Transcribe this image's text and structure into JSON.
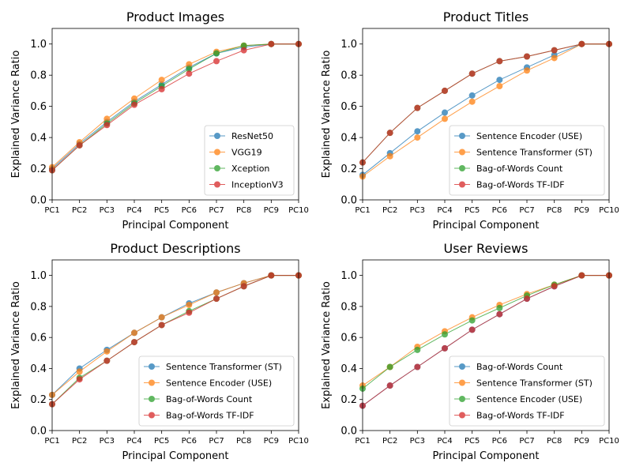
{
  "palette": {
    "blue": "#1f77b4",
    "orange": "#ff7f0e",
    "green": "#2ca02c",
    "red": "#d62728"
  },
  "chart_data": [
    {
      "type": "line",
      "title": "Product Images",
      "xlabel": "Principal Component",
      "ylabel": "Explained Variance Ratio",
      "ylim": [
        0,
        1.1
      ],
      "yticks": [
        "0.0",
        "0.2",
        "0.4",
        "0.6",
        "0.8",
        "1.0"
      ],
      "categories": [
        "PC1",
        "PC2",
        "PC3",
        "PC4",
        "PC5",
        "PC6",
        "PC7",
        "PC8",
        "PC9",
        "PC10"
      ],
      "legend_position": "lower-right",
      "series": [
        {
          "name": "ResNet50",
          "color": "#1f77b4",
          "values": [
            0.2,
            0.36,
            0.5,
            0.63,
            0.74,
            0.85,
            0.94,
            0.98,
            1.0,
            1.0
          ]
        },
        {
          "name": "VGG19",
          "color": "#ff7f0e",
          "values": [
            0.21,
            0.37,
            0.52,
            0.65,
            0.77,
            0.87,
            0.95,
            0.99,
            1.0,
            1.0
          ]
        },
        {
          "name": "Xception",
          "color": "#2ca02c",
          "values": [
            0.19,
            0.35,
            0.49,
            0.62,
            0.73,
            0.84,
            0.94,
            0.99,
            1.0,
            1.0
          ]
        },
        {
          "name": "InceptionV3",
          "color": "#d62728",
          "values": [
            0.19,
            0.35,
            0.48,
            0.61,
            0.71,
            0.81,
            0.89,
            0.96,
            1.0,
            1.0
          ]
        }
      ]
    },
    {
      "type": "line",
      "title": "Product Titles",
      "xlabel": "Principal Component",
      "ylabel": "Explained Variance Ratio",
      "ylim": [
        0,
        1.1
      ],
      "yticks": [
        "0.0",
        "0.2",
        "0.4",
        "0.6",
        "0.8",
        "1.0"
      ],
      "categories": [
        "PC1",
        "PC2",
        "PC3",
        "PC4",
        "PC5",
        "PC6",
        "PC7",
        "PC8",
        "PC9",
        "PC10"
      ],
      "legend_position": "lower-right",
      "series": [
        {
          "name": "Sentence Encoder (USE)",
          "color": "#1f77b4",
          "values": [
            0.16,
            0.3,
            0.44,
            0.56,
            0.67,
            0.77,
            0.85,
            0.93,
            1.0,
            1.0
          ]
        },
        {
          "name": "Sentence Transformer (ST)",
          "color": "#ff7f0e",
          "values": [
            0.15,
            0.28,
            0.4,
            0.52,
            0.63,
            0.73,
            0.83,
            0.91,
            1.0,
            1.0
          ]
        },
        {
          "name": "Bag-of-Words Count",
          "color": "#2ca02c",
          "values": [
            0.24,
            0.43,
            0.59,
            0.7,
            0.81,
            0.89,
            0.92,
            0.96,
            1.0,
            1.0
          ]
        },
        {
          "name": "Bag-of-Words TF-IDF",
          "color": "#d62728",
          "values": [
            0.24,
            0.43,
            0.59,
            0.7,
            0.81,
            0.89,
            0.92,
            0.96,
            1.0,
            1.0
          ]
        }
      ]
    },
    {
      "type": "line",
      "title": "Product Descriptions",
      "xlabel": "Principal Component",
      "ylabel": "Explained Variance Ratio",
      "ylim": [
        0,
        1.1
      ],
      "yticks": [
        "0.0",
        "0.2",
        "0.4",
        "0.6",
        "0.8",
        "1.0"
      ],
      "categories": [
        "PC1",
        "PC2",
        "PC3",
        "PC4",
        "PC5",
        "PC6",
        "PC7",
        "PC8",
        "PC9",
        "PC10"
      ],
      "legend_position": "lower-right",
      "series": [
        {
          "name": "Sentence Transformer (ST)",
          "color": "#1f77b4",
          "values": [
            0.23,
            0.4,
            0.52,
            0.63,
            0.73,
            0.82,
            0.89,
            0.95,
            1.0,
            1.0
          ]
        },
        {
          "name": "Sentence Encoder (USE)",
          "color": "#ff7f0e",
          "values": [
            0.23,
            0.38,
            0.51,
            0.63,
            0.73,
            0.81,
            0.89,
            0.95,
            1.0,
            1.0
          ]
        },
        {
          "name": "Bag-of-Words Count",
          "color": "#2ca02c",
          "values": [
            0.17,
            0.34,
            0.45,
            0.57,
            0.68,
            0.77,
            0.85,
            0.93,
            1.0,
            1.0
          ]
        },
        {
          "name": "Bag-of-Words TF-IDF",
          "color": "#d62728",
          "values": [
            0.17,
            0.33,
            0.45,
            0.57,
            0.68,
            0.76,
            0.85,
            0.93,
            1.0,
            1.0
          ]
        }
      ]
    },
    {
      "type": "line",
      "title": "User Reviews",
      "xlabel": "Principal Component",
      "ylabel": "Explained Variance Ratio",
      "ylim": [
        0,
        1.1
      ],
      "yticks": [
        "0.0",
        "0.2",
        "0.4",
        "0.6",
        "0.8",
        "1.0"
      ],
      "categories": [
        "PC1",
        "PC2",
        "PC3",
        "PC4",
        "PC5",
        "PC6",
        "PC7",
        "PC8",
        "PC9",
        "PC10"
      ],
      "legend_position": "lower-right",
      "series": [
        {
          "name": "Bag-of-Words Count",
          "color": "#1f77b4",
          "values": [
            0.16,
            0.29,
            0.41,
            0.53,
            0.65,
            0.75,
            0.85,
            0.93,
            1.0,
            1.0
          ]
        },
        {
          "name": "Sentence Transformer (ST)",
          "color": "#ff7f0e",
          "values": [
            0.29,
            0.41,
            0.54,
            0.64,
            0.73,
            0.81,
            0.88,
            0.94,
            1.0,
            1.0
          ]
        },
        {
          "name": "Sentence Encoder (USE)",
          "color": "#2ca02c",
          "values": [
            0.27,
            0.41,
            0.52,
            0.62,
            0.71,
            0.79,
            0.87,
            0.94,
            1.0,
            1.0
          ]
        },
        {
          "name": "Bag-of-Words TF-IDF",
          "color": "#d62728",
          "values": [
            0.16,
            0.29,
            0.41,
            0.53,
            0.65,
            0.75,
            0.85,
            0.93,
            1.0,
            1.0
          ]
        }
      ]
    }
  ]
}
